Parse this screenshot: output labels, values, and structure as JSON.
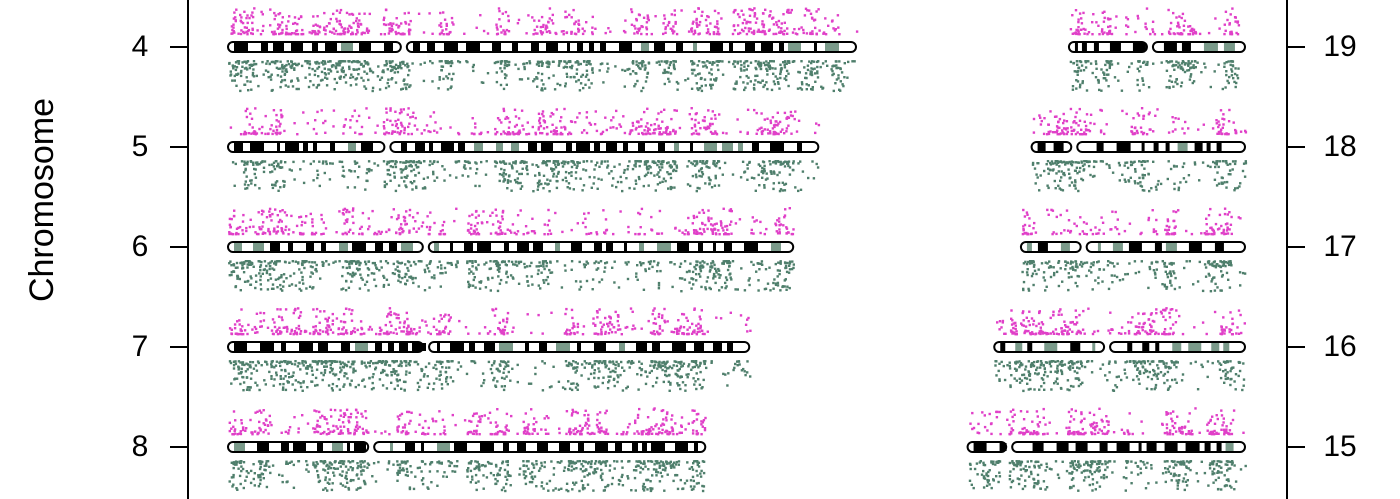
{
  "chart_data": {
    "type": "scatter",
    "title": "",
    "ylabel": "Chromosome",
    "xlabel": "",
    "grid": false,
    "colors": {
      "upper": "#e040c8",
      "lower": "#4f7f6c",
      "ideogram": "#000000",
      "centromere": "#7a9a8a"
    },
    "left_axis": {
      "tick_labels": [
        "4",
        "5",
        "6",
        "7",
        "8"
      ]
    },
    "right_axis": {
      "tick_labels": [
        "19",
        "18",
        "17",
        "16",
        "15"
      ]
    },
    "chromosomes": [
      {
        "name": "4",
        "side": "left",
        "length_frac": 1.0,
        "centromere_frac": 0.28
      },
      {
        "name": "5",
        "side": "left",
        "length_frac": 0.94,
        "centromere_frac": 0.27
      },
      {
        "name": "6",
        "side": "left",
        "length_frac": 0.9,
        "centromere_frac": 0.35
      },
      {
        "name": "7",
        "side": "left",
        "length_frac": 0.83,
        "centromere_frac": 0.38
      },
      {
        "name": "8",
        "side": "left",
        "length_frac": 0.76,
        "centromere_frac": 0.3
      },
      {
        "name": "19",
        "side": "right",
        "length_frac": 0.33,
        "centromere_frac": 0.46
      },
      {
        "name": "18",
        "side": "right",
        "length_frac": 0.4,
        "centromere_frac": 0.2
      },
      {
        "name": "17",
        "side": "right",
        "length_frac": 0.42,
        "centromere_frac": 0.28
      },
      {
        "name": "16",
        "side": "right",
        "length_frac": 0.47,
        "centromere_frac": 0.45
      },
      {
        "name": "15",
        "side": "right",
        "length_frac": 0.52,
        "centromere_frac": 0.15
      }
    ]
  }
}
